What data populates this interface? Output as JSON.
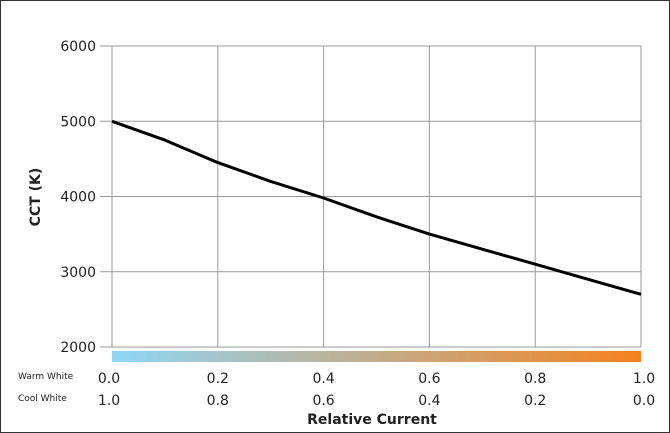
{
  "chart_data": {
    "type": "line",
    "title": "",
    "ylabel": "CCT (K)",
    "xlabel": "Relative Current",
    "ylim": [
      2000,
      6000
    ],
    "xlim": [
      0,
      1
    ],
    "grid": true,
    "y_ticks": [
      "6000",
      "5000",
      "4000",
      "3000",
      "2000"
    ],
    "x_axis_rows": [
      {
        "label": "Warm White",
        "ticks": [
          "0.0",
          "0.2",
          "0.4",
          "0.6",
          "0.8",
          "1.0"
        ]
      },
      {
        "label": "Cool White",
        "ticks": [
          "1.0",
          "0.8",
          "0.6",
          "0.4",
          "0.2",
          "0.0"
        ]
      }
    ],
    "x": [
      0.0,
      0.1,
      0.2,
      0.3,
      0.4,
      0.5,
      0.6,
      0.7,
      0.8,
      0.9,
      1.0
    ],
    "series": [
      {
        "values": [
          5000,
          4750,
          4450,
          4200,
          3980,
          3730,
          3500,
          3300,
          3100,
          2900,
          2700
        ]
      }
    ],
    "line_color": "#000000",
    "gradient_bar": {
      "from_color": "#8fd6f5",
      "to_color": "#f58220"
    }
  }
}
